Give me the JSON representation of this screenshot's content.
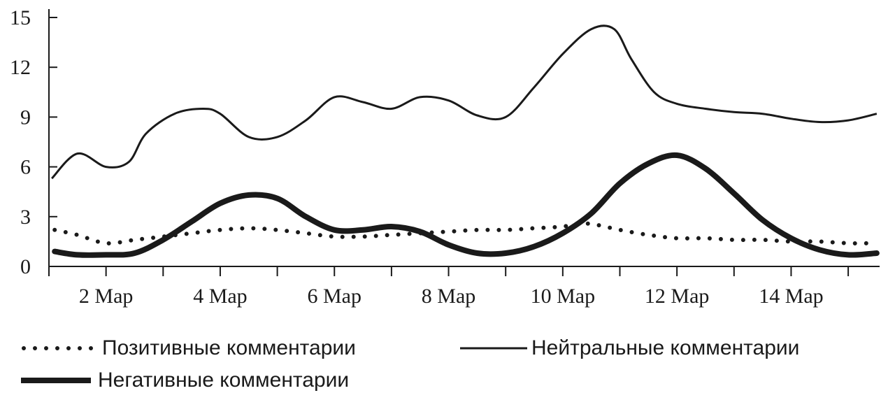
{
  "chart_data": {
    "type": "line",
    "title": "",
    "xlabel": "",
    "ylabel": "",
    "ylim": [
      0,
      15
    ],
    "y_ticks": [
      0,
      3,
      6,
      9,
      12,
      15
    ],
    "x_range": [
      1.0,
      15.55
    ],
    "x_tick_labels": [
      "2 Мар",
      "4 Мар",
      "6 Мар",
      "8 Мар",
      "10 Мар",
      "12 Мар",
      "14 Мар"
    ],
    "x_tick_values": [
      2,
      4,
      6,
      8,
      10,
      12,
      14
    ],
    "grid": false,
    "legend_position": "bottom",
    "series": [
      {
        "name": "Позитивные комментарии",
        "style": "dotted",
        "color": "#1a1a1a",
        "x": [
          1.1,
          1.5,
          2.0,
          2.5,
          3.0,
          3.5,
          4.0,
          4.5,
          5.0,
          5.5,
          6.0,
          6.5,
          7.0,
          7.5,
          8.0,
          8.5,
          9.0,
          9.5,
          10.0,
          10.3,
          10.6,
          11.0,
          11.5,
          12.0,
          12.5,
          13.0,
          13.5,
          14.0,
          14.5,
          15.0,
          15.5
        ],
        "y": [
          2.2,
          1.9,
          1.4,
          1.6,
          1.8,
          2.0,
          2.2,
          2.3,
          2.2,
          2.0,
          1.8,
          1.8,
          1.9,
          2.0,
          2.1,
          2.2,
          2.2,
          2.3,
          2.4,
          2.6,
          2.5,
          2.2,
          1.9,
          1.7,
          1.7,
          1.6,
          1.6,
          1.5,
          1.5,
          1.4,
          1.4
        ]
      },
      {
        "name": "Нейтральные комментарии",
        "style": "solid",
        "color": "#1a1a1a",
        "x": [
          1.05,
          1.5,
          2.0,
          2.4,
          2.7,
          3.2,
          3.7,
          4.0,
          4.5,
          5.0,
          5.5,
          6.0,
          6.5,
          7.0,
          7.5,
          8.0,
          8.5,
          9.0,
          9.5,
          10.0,
          10.5,
          10.9,
          11.2,
          11.6,
          12.0,
          12.5,
          13.0,
          13.5,
          14.0,
          14.5,
          15.0,
          15.5
        ],
        "y": [
          5.3,
          6.8,
          6.0,
          6.3,
          8.0,
          9.2,
          9.5,
          9.2,
          7.8,
          7.8,
          8.8,
          10.2,
          9.9,
          9.5,
          10.2,
          10.0,
          9.1,
          9.0,
          10.8,
          12.8,
          14.3,
          14.3,
          12.5,
          10.5,
          9.8,
          9.5,
          9.3,
          9.2,
          8.9,
          8.7,
          8.8,
          9.2
        ]
      },
      {
        "name": "Негативные комментарии",
        "style": "thick",
        "color": "#1a1a1a",
        "x": [
          1.1,
          1.5,
          2.0,
          2.5,
          3.0,
          3.5,
          4.0,
          4.5,
          5.0,
          5.5,
          6.0,
          6.5,
          7.0,
          7.5,
          8.0,
          8.5,
          9.0,
          9.5,
          10.0,
          10.5,
          11.0,
          11.5,
          12.0,
          12.5,
          13.0,
          13.5,
          14.0,
          14.5,
          15.0,
          15.5
        ],
        "y": [
          0.9,
          0.7,
          0.7,
          0.8,
          1.6,
          2.7,
          3.8,
          4.3,
          4.1,
          3.0,
          2.2,
          2.2,
          2.4,
          2.1,
          1.3,
          0.8,
          0.8,
          1.2,
          2.0,
          3.2,
          5.0,
          6.2,
          6.7,
          5.9,
          4.4,
          2.8,
          1.7,
          1.0,
          0.7,
          0.8
        ]
      }
    ]
  }
}
